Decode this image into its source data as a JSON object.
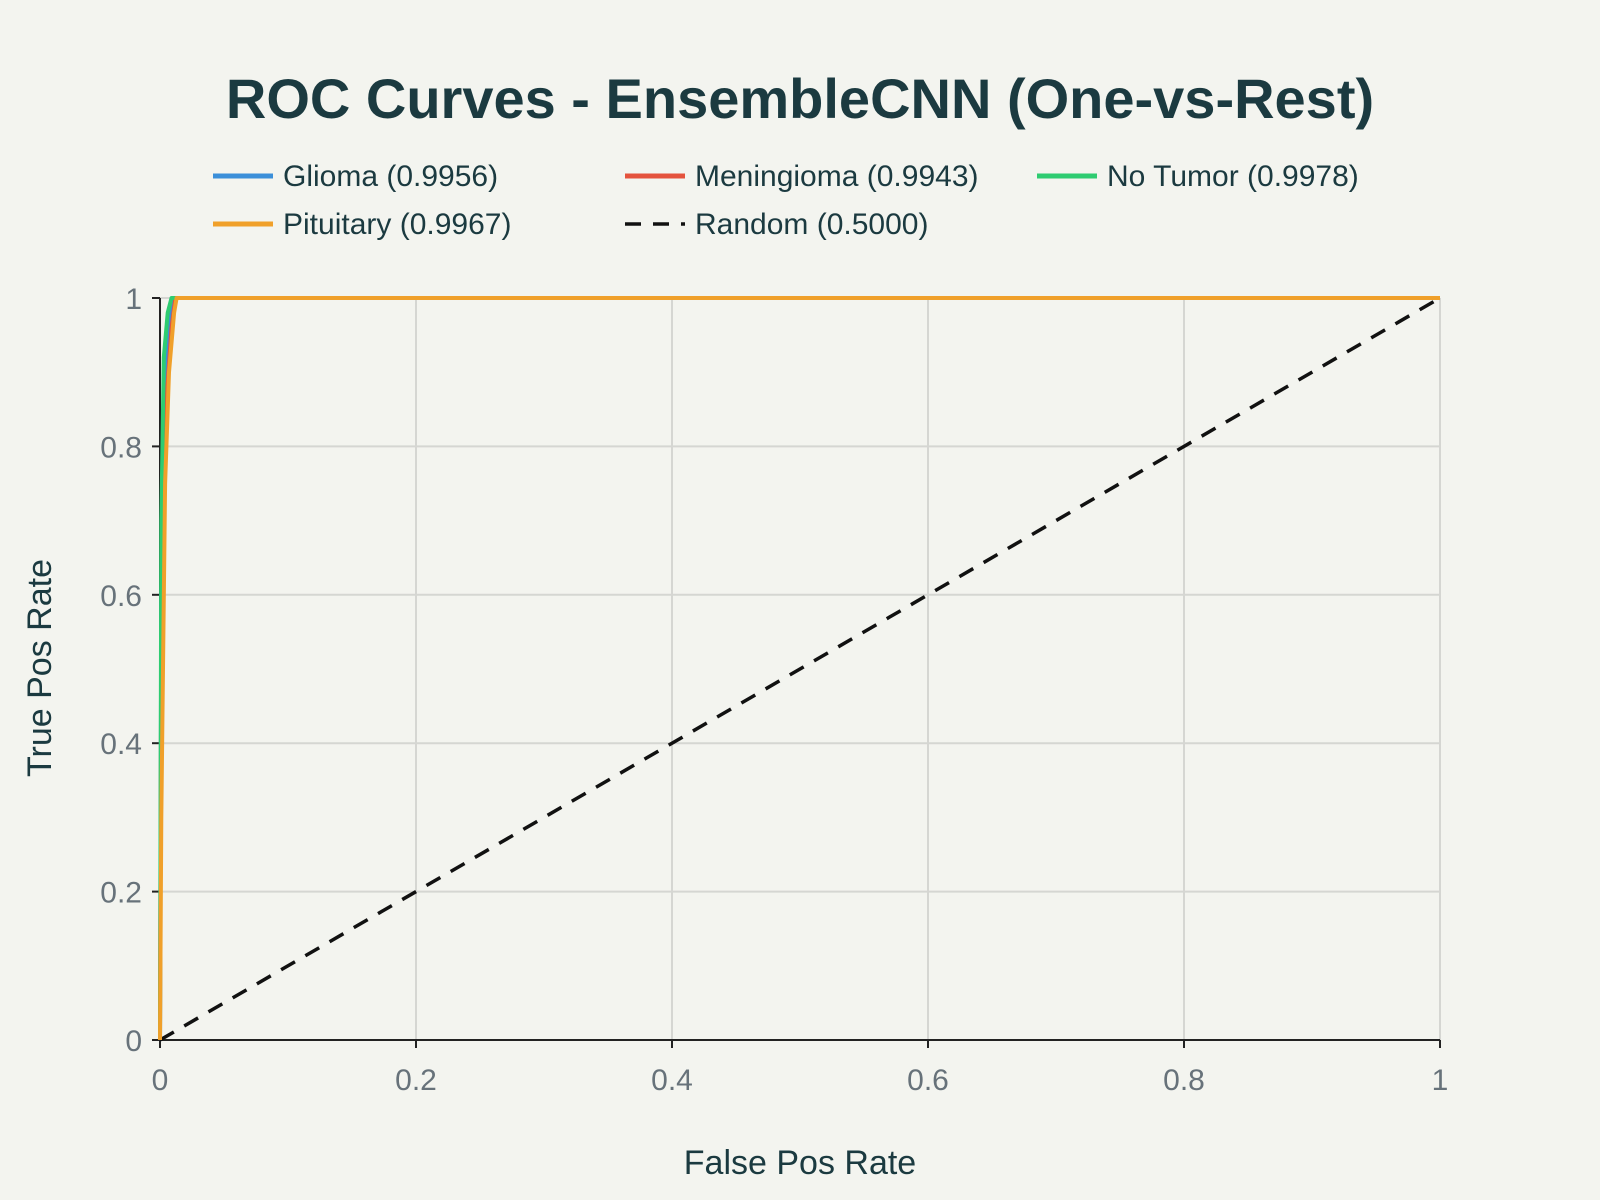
{
  "chart_data": {
    "type": "line",
    "title": "ROC Curves - EnsembleCNN (One-vs-Rest)",
    "xlabel": "False Pos Rate",
    "ylabel": "True Pos Rate",
    "xlim": [
      0,
      1
    ],
    "ylim": [
      0,
      1
    ],
    "x_ticks": [
      0,
      0.2,
      0.4,
      0.6,
      0.8,
      1
    ],
    "x_tick_labels": [
      "0",
      "0.2",
      "0.4",
      "0.6",
      "0.8",
      "1"
    ],
    "y_ticks": [
      0,
      0.2,
      0.4,
      0.6,
      0.8,
      1
    ],
    "y_tick_labels": [
      "0",
      "0.2",
      "0.4",
      "0.6",
      "0.8",
      "1"
    ],
    "grid": true,
    "legend_position": "top",
    "series": [
      {
        "name": "Glioma (0.9956)",
        "color": "#3b8fd9",
        "dash": "solid",
        "x": [
          0,
          0.001,
          0.004,
          0.008,
          0.011,
          0.02,
          0.2,
          0.5,
          0.8,
          1
        ],
        "y": [
          0,
          0.6,
          0.88,
          0.97,
          1,
          1,
          1,
          1,
          1,
          1
        ]
      },
      {
        "name": "Meningioma (0.9943)",
        "color": "#e4533d",
        "dash": "solid",
        "x": [
          0,
          0.001,
          0.005,
          0.009,
          0.012,
          0.02,
          0.2,
          0.5,
          0.8,
          1
        ],
        "y": [
          0,
          0.55,
          0.86,
          0.96,
          1,
          1,
          1,
          1,
          1,
          1
        ]
      },
      {
        "name": "No Tumor (0.9978)",
        "color": "#2ecc71",
        "dash": "solid",
        "x": [
          0,
          0.001,
          0.003,
          0.006,
          0.009,
          0.02,
          0.2,
          0.5,
          0.8,
          1
        ],
        "y": [
          0,
          0.7,
          0.92,
          0.98,
          1,
          1,
          1,
          1,
          1,
          1
        ]
      },
      {
        "name": "Pituitary (0.9967)",
        "color": "#f0a02a",
        "dash": "solid",
        "x": [
          0,
          0.001,
          0.004,
          0.007,
          0.011,
          0.013,
          0.02,
          0.2,
          0.5,
          0.8,
          1
        ],
        "y": [
          0,
          0.3,
          0.75,
          0.9,
          0.98,
          1,
          1,
          1,
          1,
          1,
          1
        ]
      },
      {
        "name": "Random (0.5000)",
        "color": "#111111",
        "dash": "dashed",
        "x": [
          0,
          1
        ],
        "y": [
          0,
          1
        ]
      }
    ]
  }
}
